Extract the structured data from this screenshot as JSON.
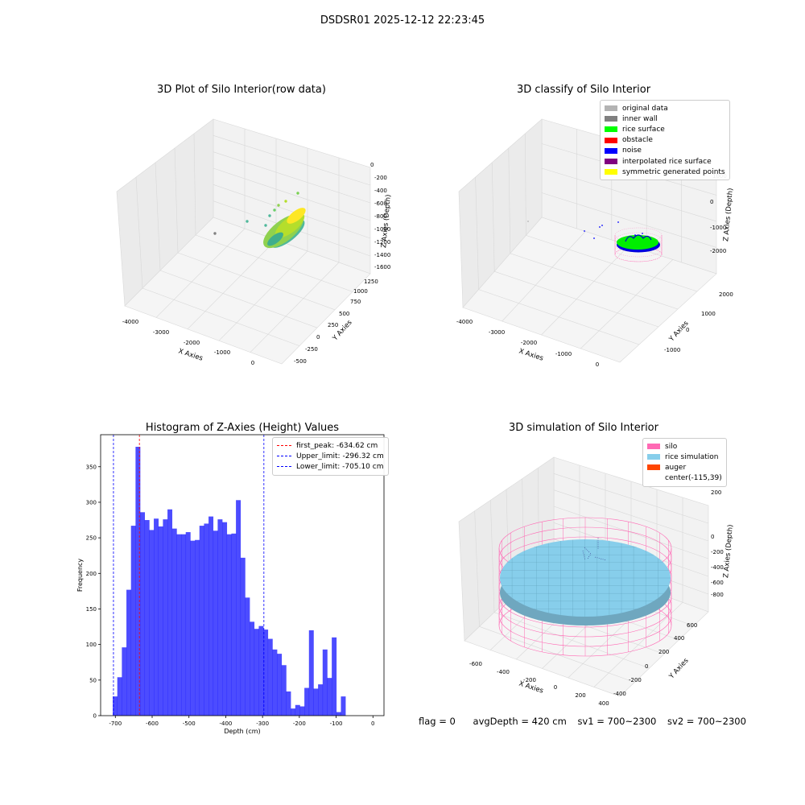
{
  "suptitle": "DSDSR01 2025-12-12 22:23:45",
  "panels": {
    "raw": {
      "title": "3D Plot of Silo Interior(row data)",
      "xlabel": "X Axies",
      "ylabel": "Y Axies",
      "zlabel": "Z Axies (Depth)",
      "xticks": [
        "-4000",
        "-3000",
        "-2000",
        "-1000",
        "0"
      ],
      "yticks": [
        "-500",
        "-250",
        "0",
        "250",
        "500",
        "750",
        "1000",
        "1250"
      ],
      "zticks": [
        "0",
        "-200",
        "-400",
        "-600",
        "-800",
        "-1000",
        "-1200",
        "-1400",
        "-1600"
      ]
    },
    "classify": {
      "title": "3D classify of Silo Interior",
      "xlabel": "X Axies",
      "ylabel": "Y Axies",
      "zlabel": "Z Axies (Depth)",
      "xticks": [
        "-4000",
        "-3000",
        "-2000",
        "-1000",
        "0"
      ],
      "yticks": [
        "-1000",
        "0",
        "1000",
        "2000"
      ],
      "zticks": [
        "1000",
        "0",
        "-1000",
        "-2000"
      ],
      "legend": [
        {
          "label": "original data",
          "color": "#b3b3b3"
        },
        {
          "label": "inner wall",
          "color": "#808080"
        },
        {
          "label": "rice surface",
          "color": "#00ff00"
        },
        {
          "label": "obstacle",
          "color": "#ff0000"
        },
        {
          "label": "noise",
          "color": "#0000ff"
        },
        {
          "label": "interpolated rice surface",
          "color": "#800080"
        },
        {
          "label": "symmetric generated points",
          "color": "#ffff00"
        }
      ]
    },
    "simulation": {
      "title": "3D simulation of Silo Interior",
      "xlabel": "X Axies",
      "ylabel": "Y Axies",
      "zlabel": "Z Axies (Depth)",
      "xticks": [
        "-600",
        "-400",
        "-200",
        "0",
        "200",
        "400"
      ],
      "yticks": [
        "-400",
        "-200",
        "0",
        "200",
        "400",
        "600"
      ],
      "zticks": [
        "200",
        "0",
        "-200",
        "-400",
        "-600",
        "-800"
      ],
      "legend": [
        {
          "label": "silo",
          "color": "#ff69b4"
        },
        {
          "label": "rice simulation",
          "color": "#87ceeb"
        },
        {
          "label": "auger",
          "color": "#ff4500"
        },
        {
          "label": "center(-115,39)",
          "color": ""
        }
      ]
    }
  },
  "status": {
    "flag": "flag = 0",
    "avg_depth": "avgDepth = 420 cm",
    "sv1": "sv1 = 700~2300",
    "sv2": "sv2 = 700~2300"
  },
  "chart_data": {
    "type": "bar",
    "title": "Histogram of Z-Axies (Height) Values",
    "xlabel": "Depth (cm)",
    "ylabel": "Frequency",
    "xlim": [
      -740,
      30
    ],
    "ylim": [
      0,
      395
    ],
    "xticks": [
      -700,
      -600,
      -500,
      -400,
      -300,
      -200,
      -100,
      0
    ],
    "yticks": [
      0,
      50,
      100,
      150,
      200,
      250,
      300,
      350
    ],
    "bar_color": "#0000ff",
    "bin_width": 12.4,
    "bins_start": [
      -707.1,
      -694.7,
      -682.3,
      -669.9,
      -657.5,
      -645.1,
      -632.7,
      -620.3,
      -607.9,
      -595.5,
      -583.1,
      -570.7,
      -558.3,
      -545.9,
      -533.5,
      -521.1,
      -508.7,
      -496.3,
      -483.9,
      -471.5,
      -459.1,
      -446.7,
      -434.3,
      -421.9,
      -409.5,
      -397.1,
      -384.7,
      -372.3,
      -359.9,
      -347.5,
      -335.1,
      -322.7,
      -310.3,
      -297.9,
      -285.5,
      -273.1,
      -260.7,
      -248.3,
      -235.9,
      -223.5,
      -211.1,
      -198.7,
      -186.3,
      -173.9,
      -161.5,
      -149.1,
      -136.7,
      -124.3,
      -111.9,
      -99.5,
      -87.1,
      -74.7,
      -62.3,
      -49.9,
      -37.5,
      -25.1,
      -12.7
    ],
    "values": [
      27,
      54,
      96,
      177,
      267,
      378,
      286,
      275,
      261,
      277,
      266,
      276,
      290,
      263,
      255,
      255,
      258,
      246,
      247,
      267,
      270,
      280,
      260,
      276,
      272,
      255,
      256,
      303,
      222,
      166,
      132,
      122,
      126,
      121,
      108,
      93,
      87,
      71,
      34,
      10,
      15,
      13,
      39,
      120,
      38,
      44,
      93,
      53,
      110,
      5,
      27,
      0,
      0,
      0,
      0,
      0,
      0
    ],
    "vlines": [
      {
        "label": "first_peak: -634.62 cm",
        "value": -634.62,
        "color": "#ff0000"
      },
      {
        "label": "Upper_limit: -296.32 cm",
        "value": -296.32,
        "color": "#0000ff"
      },
      {
        "label": "Lower_limit: -705.10 cm",
        "value": -705.1,
        "color": "#0000ff"
      }
    ]
  }
}
